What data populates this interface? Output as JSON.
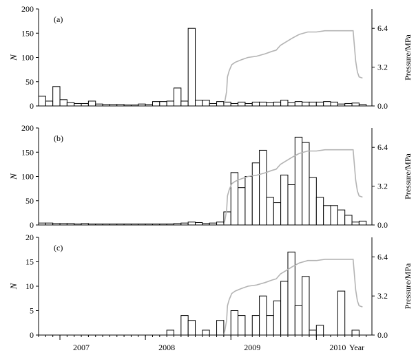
{
  "chart_data": [
    {
      "type": "bar",
      "panel_label": "(a)",
      "ylabel": "N",
      "y2label": "Pressure/MPa",
      "ylim": [
        0,
        200
      ],
      "yticks": [
        0,
        50,
        100,
        150,
        200
      ],
      "y2lim": [
        0,
        8
      ],
      "y2ticks": [
        "0.0",
        "3.2",
        "6.4"
      ],
      "x_start": 2006.75,
      "bin_months": 1,
      "values": [
        20,
        10,
        40,
        13,
        7,
        5,
        5,
        10,
        4,
        3,
        3,
        3,
        2,
        2,
        4,
        3,
        9,
        9,
        10,
        37,
        10,
        160,
        12,
        12,
        5,
        9,
        8,
        5,
        8,
        5,
        8,
        8,
        7,
        8,
        12,
        7,
        9,
        8,
        8,
        8,
        9,
        8,
        4,
        5,
        6,
        3
      ]
    },
    {
      "type": "bar",
      "panel_label": "(b)",
      "ylabel": "N",
      "y2label": "Pressure/MPa",
      "ylim": [
        0,
        200
      ],
      "yticks": [
        0,
        50,
        100,
        150,
        200
      ],
      "y2lim": [
        0,
        8
      ],
      "y2ticks": [
        "0.0",
        "3.2",
        "6.4"
      ],
      "x_start": 2006.75,
      "bin_months": 1,
      "values": [
        4,
        4,
        3,
        3,
        3,
        2,
        3,
        2,
        2,
        2,
        2,
        2,
        2,
        2,
        2,
        2,
        2,
        2,
        2,
        3,
        4,
        6,
        5,
        3,
        4,
        6,
        27,
        108,
        77,
        100,
        128,
        154,
        57,
        46,
        103,
        83,
        181,
        170,
        98,
        57,
        40,
        40,
        31,
        20,
        6,
        8
      ]
    },
    {
      "type": "bar",
      "panel_label": "(c)",
      "ylabel": "N",
      "y2label": "Pressure/MPa",
      "ylim": [
        0,
        20
      ],
      "yticks": [
        0,
        5,
        10,
        15,
        20
      ],
      "y2lim": [
        0,
        8
      ],
      "y2ticks": [
        "0.0",
        "3.2",
        "6.4"
      ],
      "x_start": 2006.75,
      "bin_months": 1,
      "values": [
        0,
        0,
        0,
        0,
        0,
        0,
        0,
        0,
        0,
        0,
        0,
        0,
        0,
        0,
        0,
        0,
        0,
        0,
        1,
        0,
        4,
        3,
        0,
        1,
        0,
        3,
        0,
        5,
        4,
        0,
        4,
        8,
        4,
        7,
        11,
        17,
        6,
        12,
        1,
        2,
        0,
        0,
        9,
        0,
        1,
        0
      ]
    }
  ],
  "x_axis": {
    "xlim": [
      2006.75,
      2010.65
    ],
    "tick_labels": [
      "2007",
      "2008",
      "2009",
      "2010"
    ],
    "tick_positions": [
      2007.25,
      2008.25,
      2009.25,
      2010.25
    ],
    "xlabel": "Year"
  },
  "pressure_series": {
    "color": "#b3b3b3",
    "x": [
      2008.92,
      2008.95,
      2008.96,
      2008.98,
      2009.01,
      2009.05,
      2009.12,
      2009.2,
      2009.3,
      2009.4,
      2009.48,
      2009.53,
      2009.58,
      2009.65,
      2009.72,
      2009.8,
      2009.9,
      2010.0,
      2010.1,
      2010.2,
      2010.3,
      2010.38,
      2010.43,
      2010.46,
      2010.48,
      2010.5,
      2010.54
    ],
    "y": [
      0.0,
      1.2,
      2.4,
      2.9,
      3.4,
      3.6,
      3.8,
      4.0,
      4.1,
      4.3,
      4.5,
      4.6,
      5.0,
      5.3,
      5.6,
      5.9,
      6.1,
      6.1,
      6.2,
      6.2,
      6.2,
      6.2,
      6.2,
      3.7,
      2.8,
      2.4,
      2.3
    ]
  }
}
